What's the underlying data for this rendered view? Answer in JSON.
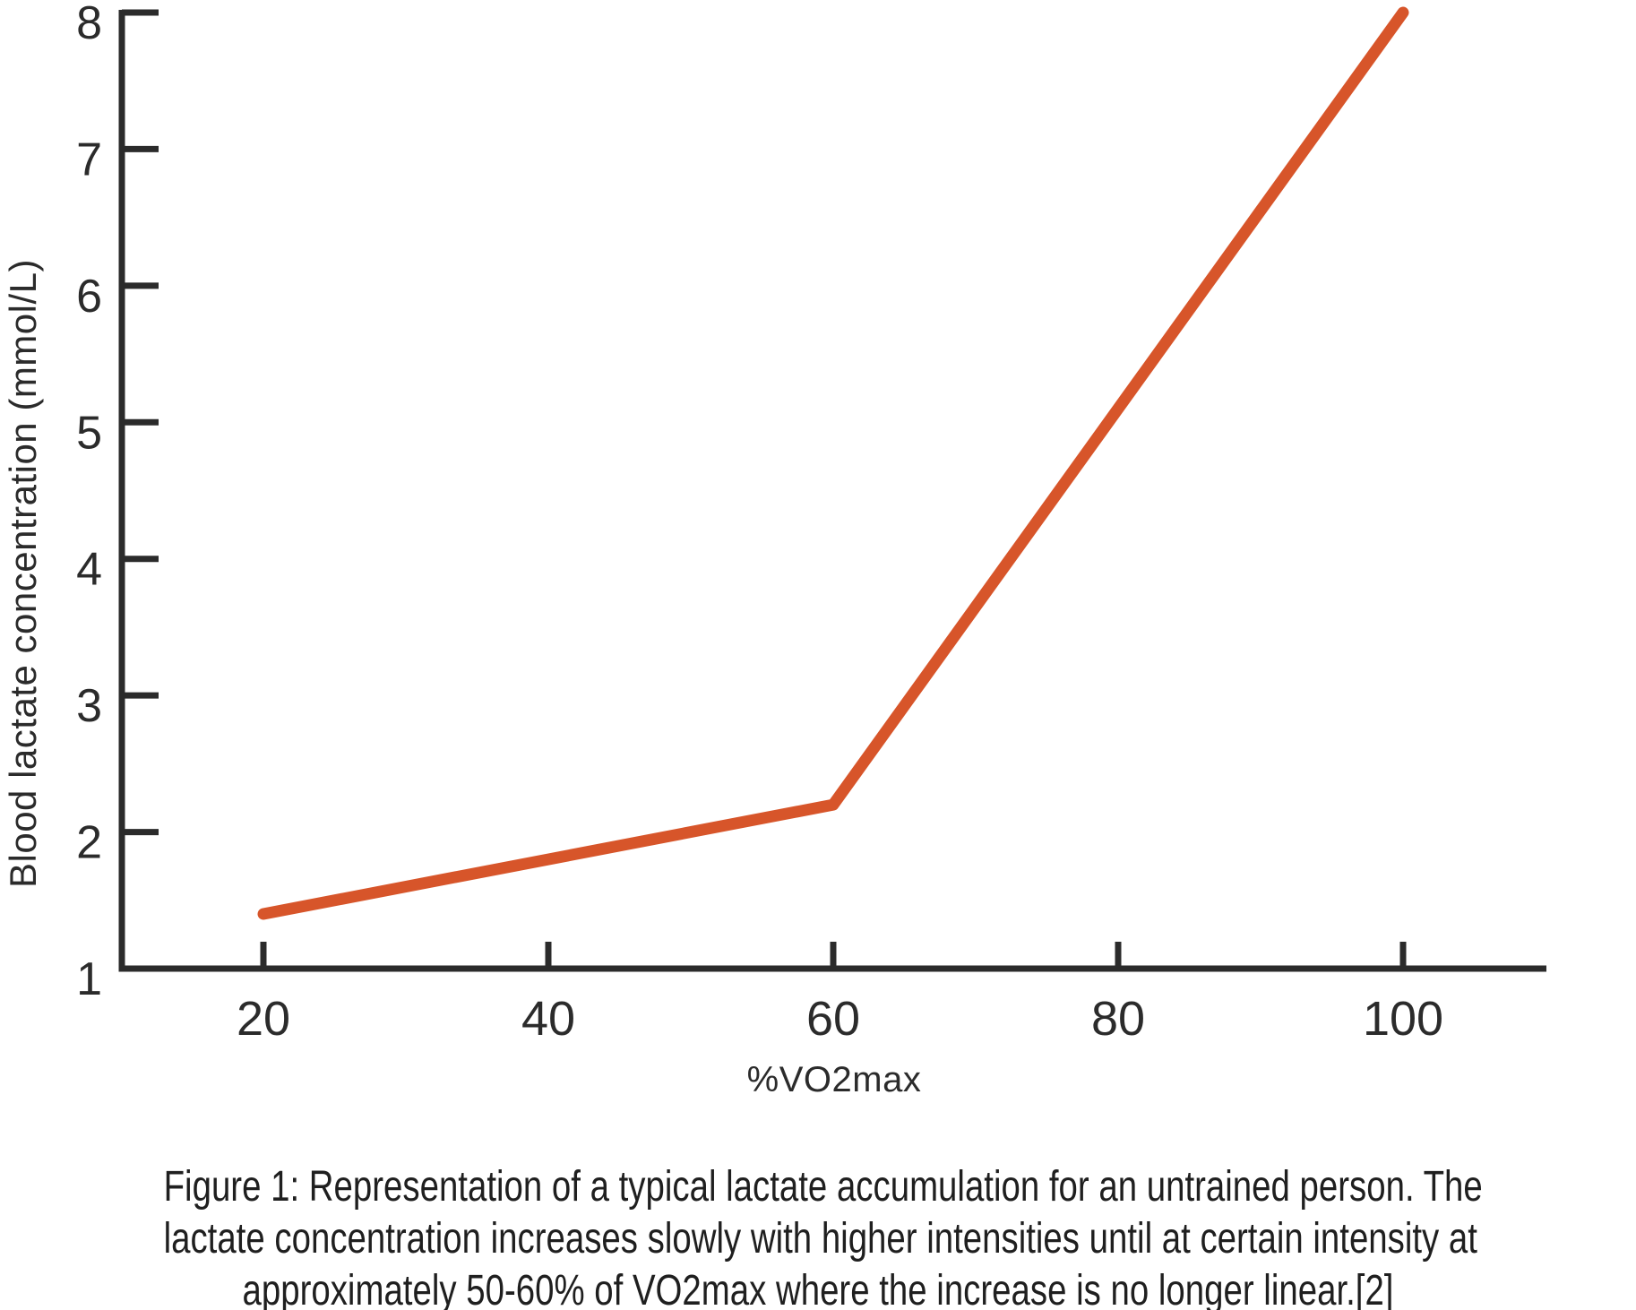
{
  "figure": {
    "caption_lines": [
      "Figure 1: Representation of a typical lactate accumulation for an untrained person. The",
      "lactate concentration increases slowly with higher intensities until at certain intensity at",
      "approximately 50-60% of VO2max where the increase is no longer linear.[2]"
    ],
    "caption_full": "Figure 1: Representation of a typical lactate accumulation for an untrained person. The lactate concentration increases slowly with higher intensities until at certain intensity at approximately 50-60% of VO2max where the increase is no longer linear.[2]"
  },
  "chart_data": {
    "type": "line",
    "title": "",
    "xlabel": "%VO2max",
    "ylabel": "Blood lactate concentration (mmol/L)",
    "x_ticks": [
      20,
      40,
      60,
      80,
      100
    ],
    "y_ticks": [
      1,
      2,
      3,
      4,
      5,
      6,
      7,
      8
    ],
    "xlim": [
      10,
      110
    ],
    "ylim": [
      1,
      8
    ],
    "grid": false,
    "legend": "none",
    "series": [
      {
        "name": "blood-lactate-untrained",
        "color": "#D7552A",
        "points": [
          [
            20,
            1.4
          ],
          [
            60,
            2.2
          ],
          [
            100,
            8
          ]
        ]
      }
    ]
  },
  "colors": {
    "axis": "#2b2b2b",
    "tick_text": "#2b2b2b",
    "caption_text": "#1f1f1f",
    "line": "#D7552A",
    "background": "#ffffff"
  }
}
